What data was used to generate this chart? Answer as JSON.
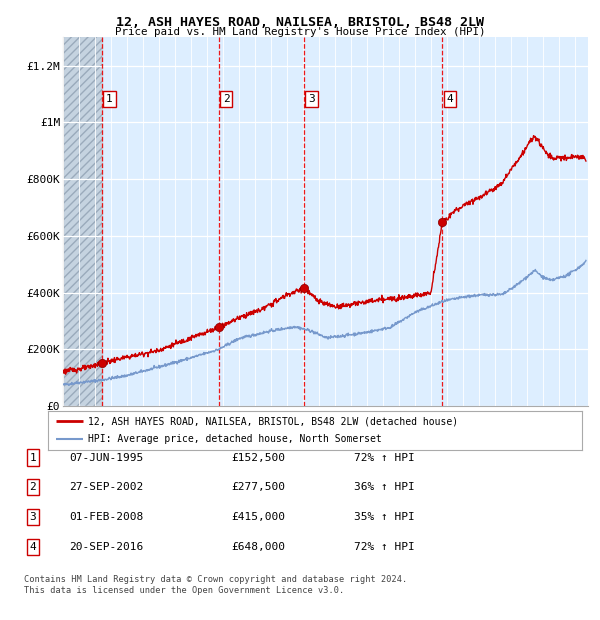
{
  "title1": "12, ASH HAYES ROAD, NAILSEA, BRISTOL, BS48 2LW",
  "title2": "Price paid vs. HM Land Registry's House Price Index (HPI)",
  "xlim_start": 1993.0,
  "xlim_end": 2025.83,
  "ylim": [
    0,
    1300000
  ],
  "yticks": [
    0,
    200000,
    400000,
    600000,
    800000,
    1000000,
    1200000
  ],
  "ytick_labels": [
    "£0",
    "£200K",
    "£400K",
    "£600K",
    "£800K",
    "£1M",
    "£1.2M"
  ],
  "sale_dates_decimal": [
    1995.44,
    2002.74,
    2008.08,
    2016.72
  ],
  "sale_prices": [
    152500,
    277500,
    415000,
    648000
  ],
  "sale_labels": [
    "1",
    "2",
    "3",
    "4"
  ],
  "vline_color": "#ee0000",
  "sale_dot_color": "#cc0000",
  "hpi_line_color": "#7799cc",
  "price_line_color": "#cc0000",
  "hatch_region_end": 1995.44,
  "legend_label_price": "12, ASH HAYES ROAD, NAILSEA, BRISTOL, BS48 2LW (detached house)",
  "legend_label_hpi": "HPI: Average price, detached house, North Somerset",
  "table_rows": [
    [
      "1",
      "07-JUN-1995",
      "£152,500",
      "72% ↑ HPI"
    ],
    [
      "2",
      "27-SEP-2002",
      "£277,500",
      "36% ↑ HPI"
    ],
    [
      "3",
      "01-FEB-2008",
      "£415,000",
      "35% ↑ HPI"
    ],
    [
      "4",
      "20-SEP-2016",
      "£648,000",
      "72% ↑ HPI"
    ]
  ],
  "footer": "Contains HM Land Registry data © Crown copyright and database right 2024.\nThis data is licensed under the Open Government Licence v3.0.",
  "bg_color": "#ddeeff",
  "hatch_color": "#aabbcc"
}
